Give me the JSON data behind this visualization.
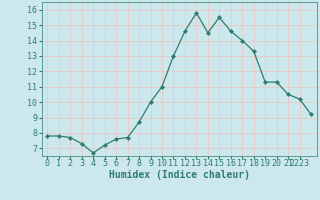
{
  "x": [
    0,
    1,
    2,
    3,
    4,
    5,
    6,
    7,
    8,
    9,
    10,
    11,
    12,
    13,
    14,
    15,
    16,
    17,
    18,
    19,
    20,
    21,
    22,
    23
  ],
  "y": [
    7.8,
    7.8,
    7.7,
    7.3,
    6.7,
    7.2,
    7.6,
    7.7,
    8.7,
    10.0,
    11.0,
    13.0,
    14.6,
    15.8,
    14.5,
    15.5,
    14.6,
    14.0,
    13.3,
    11.3,
    11.3,
    10.5,
    10.2,
    9.2
  ],
  "line_color": "#2e7d6e",
  "marker": "D",
  "marker_size": 2.0,
  "line_width": 0.9,
  "bg_color": "#cce8ec",
  "grid_color": "#e8c8c8",
  "xlabel": "Humidex (Indice chaleur)",
  "xlabel_fontsize": 7,
  "ylabel_ticks": [
    7,
    8,
    9,
    10,
    11,
    12,
    13,
    14,
    15,
    16
  ],
  "ylim": [
    6.5,
    16.5
  ],
  "xlim": [
    -0.5,
    23.5
  ],
  "tick_fontsize": 6,
  "tick_color": "#2e7d6e",
  "label_color": "#2e7d6e"
}
